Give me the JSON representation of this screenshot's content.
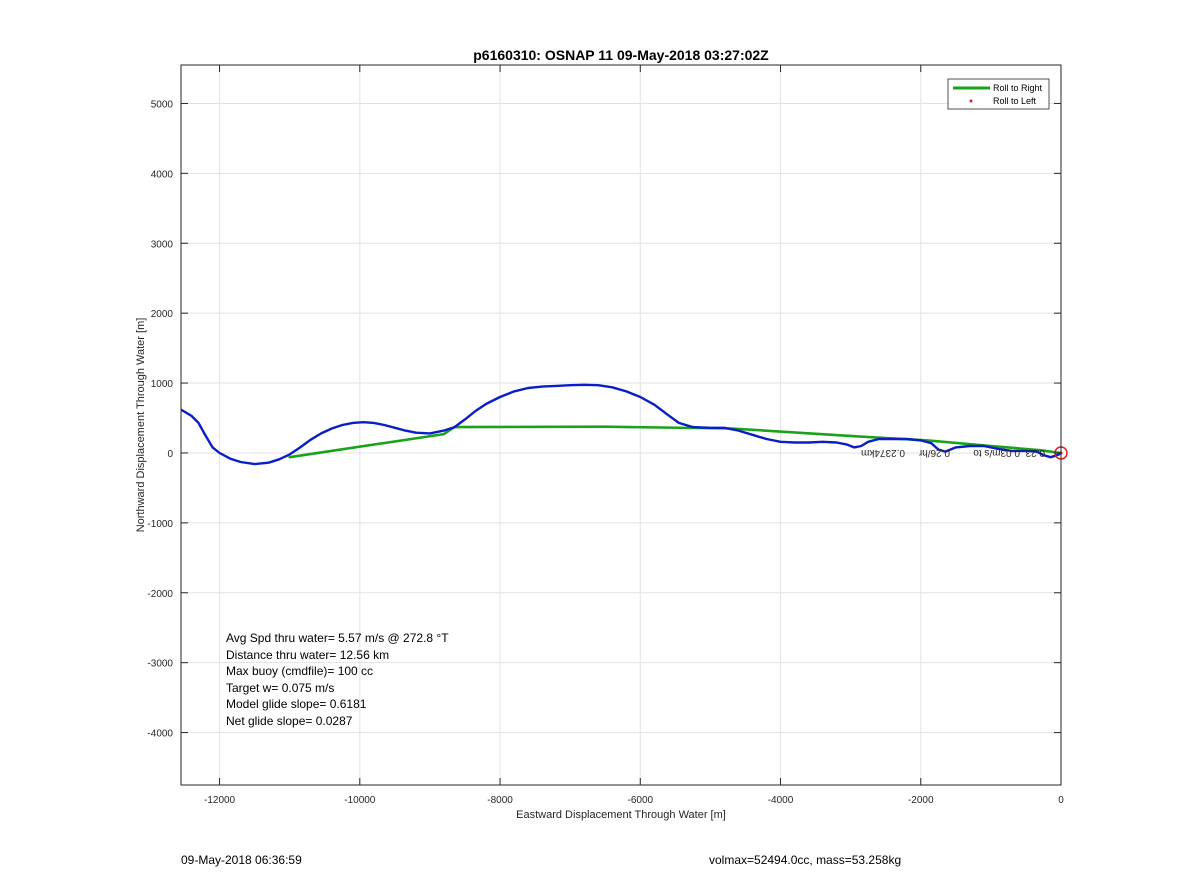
{
  "chart_data": {
    "type": "line",
    "title": "p6160310: OSNAP 11 09-May-2018 03:27:02Z",
    "xlabel": "Eastward Displacement Through Water [m]",
    "ylabel": "Northward Displacement Through Water [m]",
    "xlim": [
      -12550,
      0
    ],
    "ylim": [
      -4750,
      5550
    ],
    "xticks": [
      -12000,
      -10000,
      -8000,
      -6000,
      -4000,
      -2000,
      0
    ],
    "yticks": [
      5000,
      4000,
      3000,
      2000,
      1000,
      0,
      -1000,
      -2000,
      -3000,
      -4000
    ],
    "grid": true,
    "legend_position": "top-right",
    "legend": [
      {
        "name": "Roll to Right",
        "color": "#1aa31a",
        "style": "line"
      },
      {
        "name": "Roll to Left",
        "color": "#e02020",
        "style": "dot"
      }
    ],
    "series": [
      {
        "name": "track",
        "color": "#0a1ec8",
        "x": [
          -12550,
          -12400,
          -12300,
          -12200,
          -12100,
          -12000,
          -11850,
          -11700,
          -11500,
          -11300,
          -11150,
          -11000,
          -10850,
          -10700,
          -10550,
          -10400,
          -10250,
          -10100,
          -9950,
          -9800,
          -9650,
          -9500,
          -9350,
          -9200,
          -9000,
          -8800,
          -8650,
          -8500,
          -8350,
          -8200,
          -8000,
          -7800,
          -7600,
          -7400,
          -7200,
          -7000,
          -6800,
          -6600,
          -6400,
          -6200,
          -6000,
          -5800,
          -5600,
          -5450,
          -5250,
          -5000,
          -4800,
          -4600,
          -4400,
          -4200,
          -4000,
          -3800,
          -3600,
          -3400,
          -3200,
          -3050,
          -2950,
          -2850,
          -2750,
          -2600,
          -2400,
          -2200,
          -2000,
          -1850,
          -1750,
          -1650,
          -1500,
          -1300,
          -1100,
          -900,
          -700,
          -500,
          -350,
          -250,
          -150,
          -80,
          -30,
          0
        ],
        "y": [
          620,
          530,
          430,
          250,
          80,
          0,
          -80,
          -130,
          -160,
          -140,
          -90,
          -20,
          80,
          190,
          280,
          350,
          400,
          430,
          440,
          430,
          400,
          360,
          320,
          290,
          280,
          320,
          370,
          480,
          600,
          700,
          800,
          880,
          930,
          950,
          960,
          970,
          975,
          970,
          940,
          880,
          800,
          690,
          540,
          430,
          370,
          360,
          360,
          320,
          260,
          200,
          160,
          150,
          150,
          160,
          150,
          120,
          80,
          100,
          160,
          200,
          200,
          200,
          180,
          140,
          50,
          20,
          80,
          100,
          100,
          60,
          30,
          30,
          20,
          -30,
          -60,
          -40,
          -20,
          0
        ]
      },
      {
        "name": "Roll to Right",
        "color": "#1aa31a",
        "x": [
          -11000,
          -8800,
          -8650,
          -6500,
          -4700,
          -2950,
          -1900,
          -1000,
          -300,
          0
        ],
        "y": [
          -60,
          270,
          370,
          375,
          350,
          240,
          180,
          100,
          40,
          0
        ]
      }
    ],
    "overlay_text": "0.2374km",
    "overlay_text_2": "0.26/hr",
    "overlay_text_3": "0.03m/s to",
    "overlay_text_4": "0.23",
    "marker_label": "surface position"
  },
  "info": {
    "lines": [
      "Avg Spd thru water=  5.57 m/s @ 272.8 °T",
      "Distance thru water= 12.56 km",
      "Max buoy (cmdfile)= 100 cc",
      "Target w= 0.075 m/s",
      "Model glide slope= 0.6181",
      "Net glide slope= 0.0287"
    ]
  },
  "footer": {
    "left": "09-May-2018 06:36:59",
    "right": "volmax=52494.0cc, mass=53.258kg"
  },
  "colors": {
    "track": "#0a1ec8",
    "roll_right": "#1aa31a",
    "roll_left": "#e02020",
    "end_marker": "#e02020",
    "grid": "#e2e2e2"
  }
}
